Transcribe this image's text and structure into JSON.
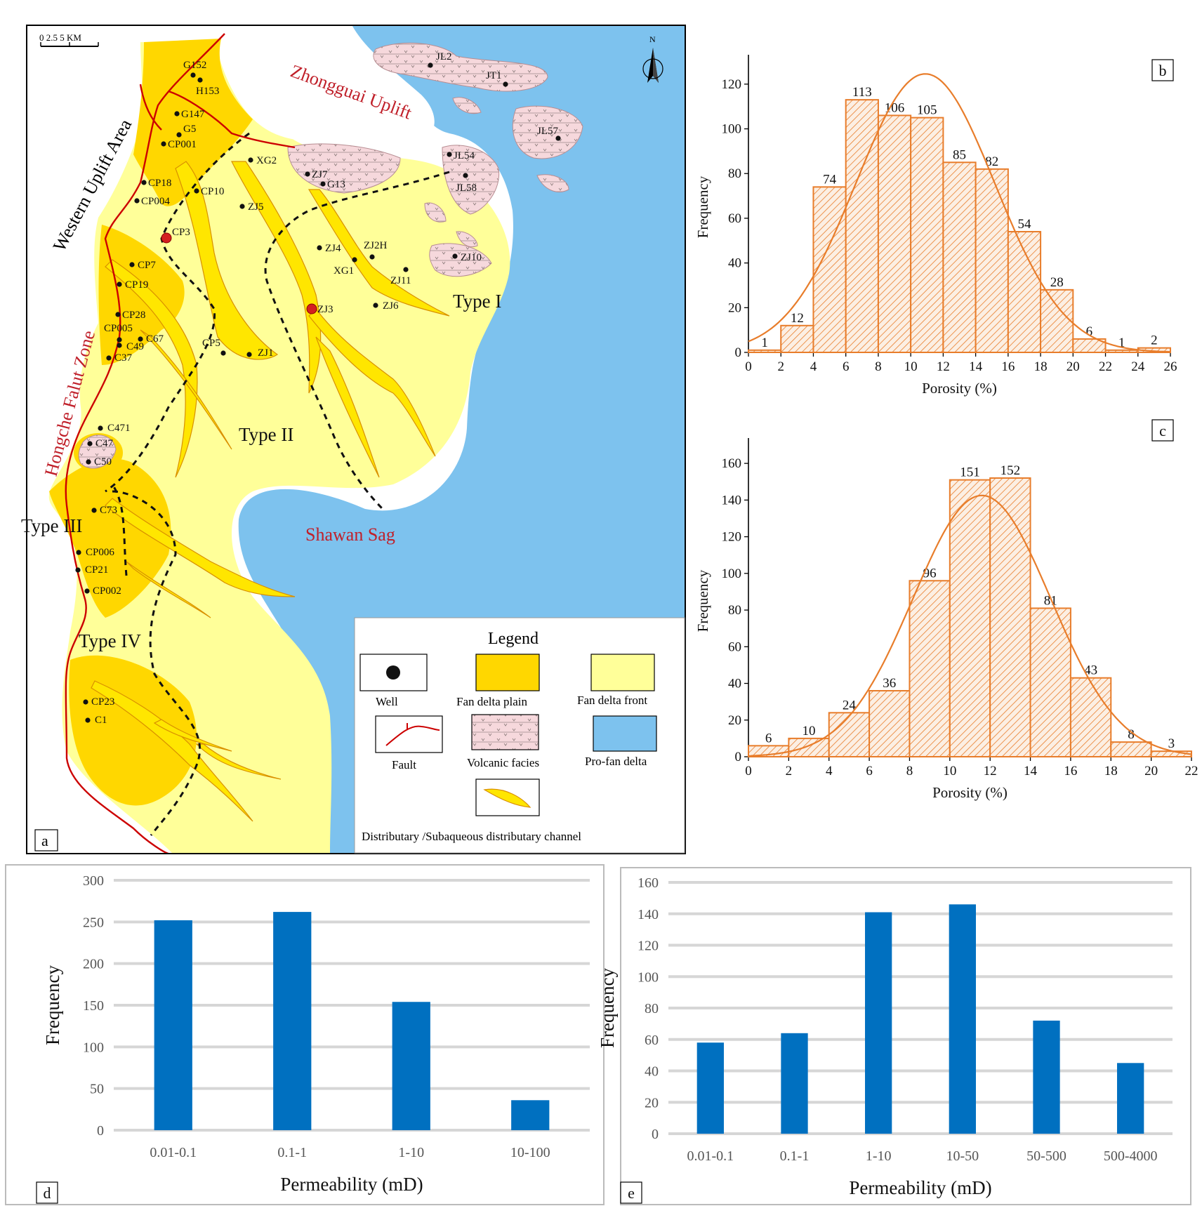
{
  "panels": {
    "a": {
      "label": "a",
      "scale_label": "0   2.5   5 KM",
      "north": "N",
      "regions": [
        "Zhongguai Uplift",
        "Western Uplift Area",
        "Hongche Falut Zone",
        "Shawan Sag"
      ],
      "types": [
        "Type I",
        "Type II",
        "Type  III",
        "Type IV"
      ],
      "wells": [
        "JL2",
        "JT1",
        "JL57",
        "JL54",
        "JL58",
        "ZJ10",
        "ZJ11",
        "ZJ2H",
        "XG1",
        "ZJ4",
        "ZJ6",
        "ZJ3",
        "ZJ7",
        "G13",
        "XG2",
        "ZJ5",
        "G152",
        "H153",
        "G147",
        "G5",
        "CP001",
        "CP18",
        "CP004",
        "CP10",
        "CP3",
        "CP7",
        "CP19",
        "CP28",
        "CP005",
        "C49",
        "C67",
        "C37",
        "CP5",
        "ZJ1",
        "C471",
        "C47",
        "C50",
        "C73",
        "CP006",
        "CP21",
        "CP002",
        "CP23",
        "C1"
      ],
      "legend": {
        "title": "Legend",
        "items": [
          "Well",
          "Fan delta plain",
          "Fan delta front",
          "Fault",
          "Volcanic facies",
          "Pro-fan delta",
          "Distributary /Subaqueous distributary  channel"
        ]
      },
      "colors": {
        "plain": "#FFD700",
        "front": "#FFFF99",
        "prodelta": "#7DC2EE",
        "volcanic": "#F6D8DC",
        "fault": "#CC0000",
        "well": "#111111"
      }
    }
  },
  "chart_data": [
    {
      "panel": "b",
      "type": "bar",
      "bin_edges": [
        0,
        2,
        4,
        6,
        8,
        10,
        12,
        14,
        16,
        18,
        20,
        22,
        24,
        26
      ],
      "values": [
        1,
        12,
        74,
        113,
        106,
        105,
        85,
        82,
        54,
        28,
        6,
        1,
        2
      ],
      "xticks": [
        0,
        2,
        4,
        6,
        8,
        10,
        12,
        14,
        16,
        18,
        20,
        22,
        24,
        26
      ],
      "yticks": [
        0,
        20,
        40,
        60,
        80,
        100,
        120
      ],
      "xlim": [
        0,
        26
      ],
      "ylim": [
        0,
        130
      ],
      "xlabel": "Porosity (%)",
      "ylabel": "Frequency",
      "fit_curve": "normal",
      "color": "#E87D2B"
    },
    {
      "panel": "c",
      "type": "bar",
      "bin_edges": [
        0,
        2,
        4,
        6,
        8,
        10,
        12,
        14,
        16,
        18,
        20,
        22
      ],
      "values": [
        6,
        10,
        24,
        36,
        96,
        151,
        152,
        81,
        43,
        8,
        3
      ],
      "xticks": [
        0,
        2,
        4,
        6,
        8,
        10,
        12,
        14,
        16,
        18,
        20,
        22
      ],
      "yticks": [
        0,
        20,
        40,
        60,
        80,
        100,
        120,
        140,
        160
      ],
      "xlim": [
        0,
        22
      ],
      "ylim": [
        0,
        170
      ],
      "xlabel": "Porosity (%)",
      "ylabel": "Frequency",
      "fit_curve": "normal",
      "color": "#E87D2B"
    },
    {
      "panel": "d",
      "type": "bar",
      "categories": [
        "0.01-0.1",
        "0.1-1",
        "1-10",
        "10-100"
      ],
      "values": [
        252,
        262,
        154,
        36
      ],
      "yticks": [
        0,
        50,
        100,
        150,
        200,
        250,
        300
      ],
      "ylim": [
        0,
        300
      ],
      "xlabel": "Permeability   (mD)",
      "ylabel": "Frequency",
      "grid": true,
      "color": "#0070C0"
    },
    {
      "panel": "e",
      "type": "bar",
      "categories": [
        "0.01-0.1",
        "0.1-1",
        "1-10",
        "10-50",
        "50-500",
        "500-4000"
      ],
      "values": [
        58,
        64,
        141,
        146,
        72,
        45
      ],
      "yticks": [
        0,
        20,
        40,
        60,
        80,
        100,
        120,
        140,
        160
      ],
      "ylim": [
        0,
        160
      ],
      "xlabel": "Permeability    (mD)",
      "ylabel": "Frequency",
      "grid": true,
      "color": "#0070C0"
    }
  ]
}
